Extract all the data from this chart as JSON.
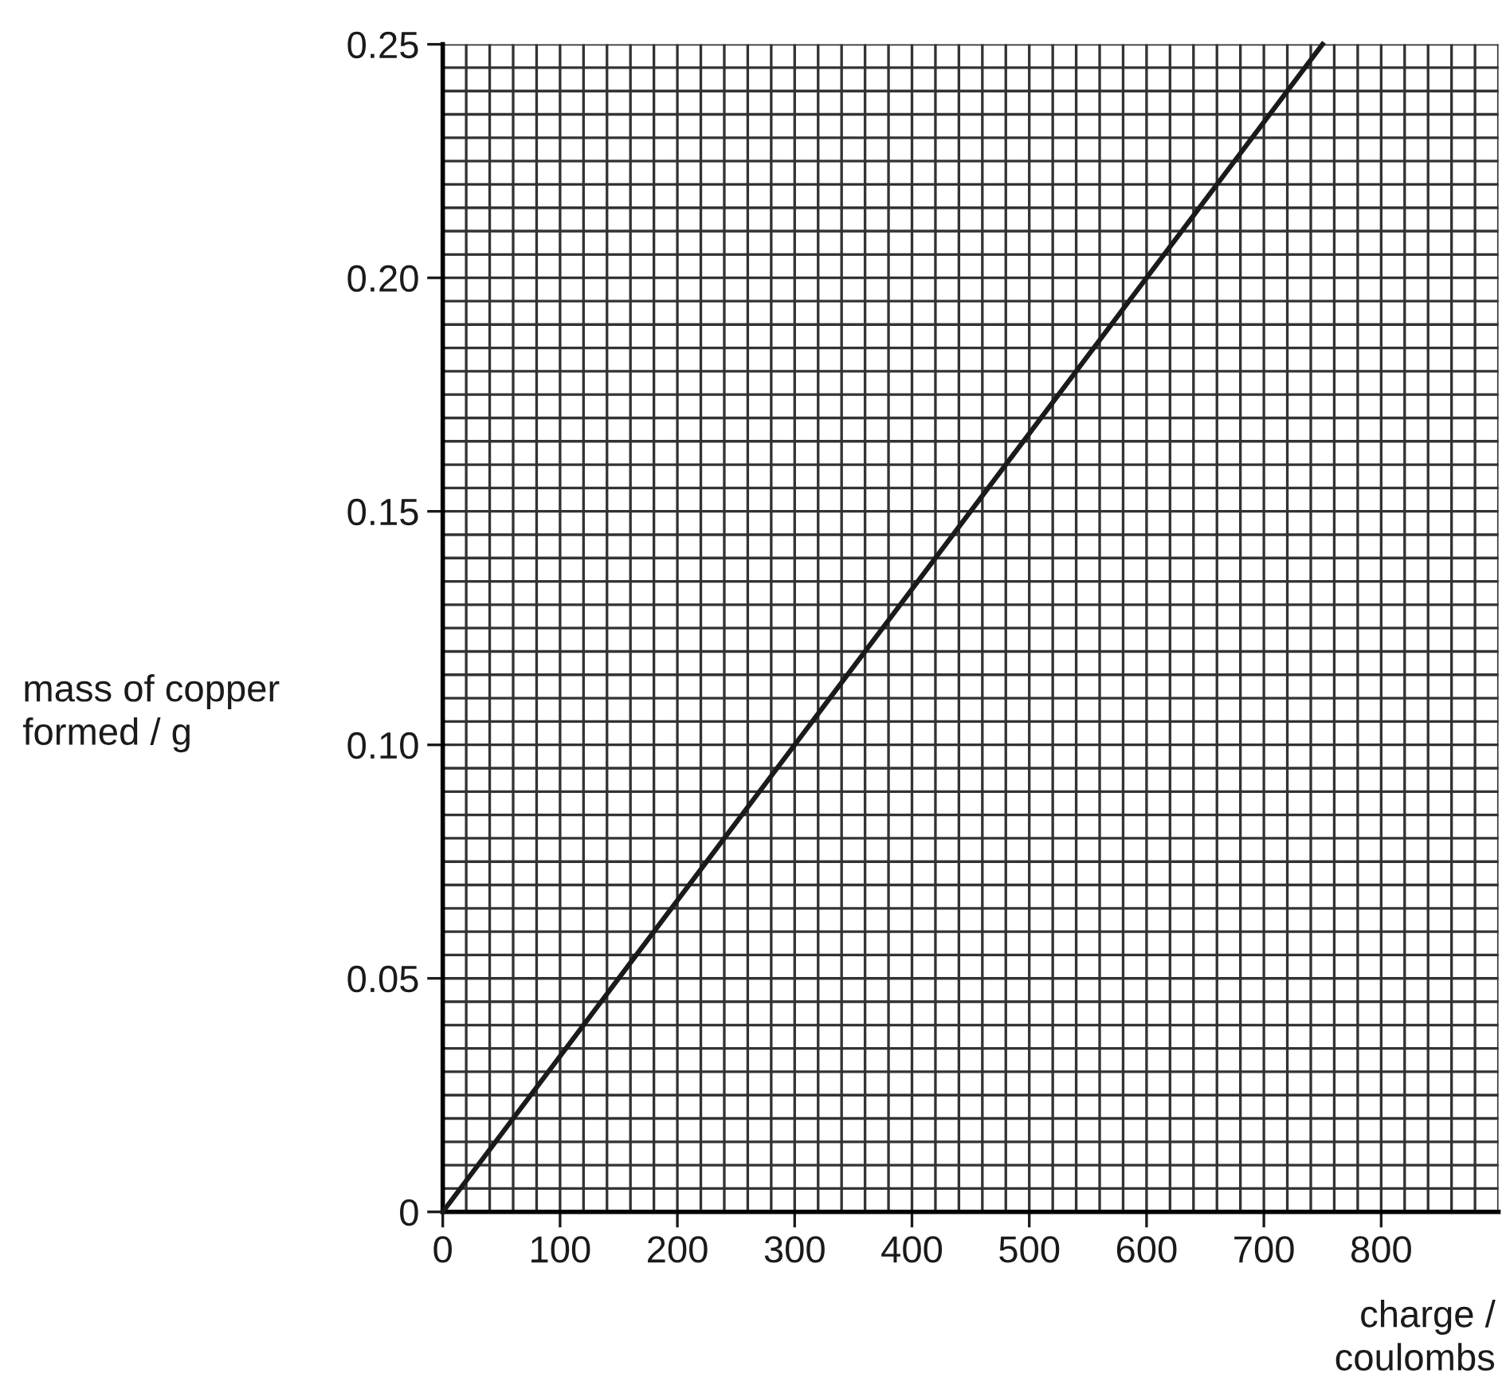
{
  "chart_data": {
    "type": "line",
    "xlabel": "charge /\ncoulombs",
    "ylabel": "mass of copper\nformed / g",
    "x": [
      0,
      750
    ],
    "series": [
      {
        "color": "#1a1a1a",
        "values": [
          0,
          0.25
        ]
      }
    ],
    "xlim": [
      0,
      900
    ],
    "xticks": [
      0,
      100,
      200,
      300,
      400,
      500,
      600,
      700,
      800
    ],
    "ylim": [
      0,
      0.25
    ],
    "yticks": [
      {
        "value": 0,
        "label": "0"
      },
      {
        "value": 0.05,
        "label": "0.05"
      },
      {
        "value": 0.1,
        "label": "0.10"
      },
      {
        "value": 0.15,
        "label": "0.15"
      },
      {
        "value": 0.2,
        "label": "0.20"
      },
      {
        "value": 0.25,
        "label": "0.25"
      }
    ],
    "grid": true,
    "marker": "none",
    "line_style": "solid",
    "legend": false
  }
}
